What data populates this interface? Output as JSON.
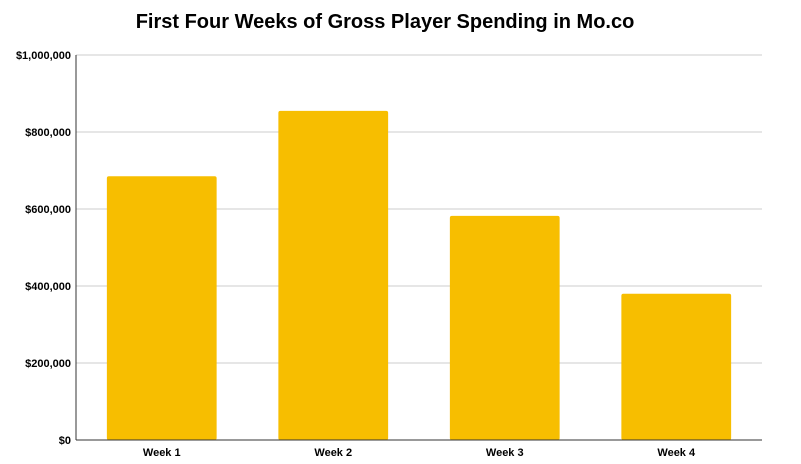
{
  "chart_data": {
    "type": "bar",
    "title": "First Four Weeks of Gross Player Spending in Mo.co",
    "xlabel": "",
    "ylabel": "",
    "categories": [
      "Week 1",
      "Week 2",
      "Week 3",
      "Week 4"
    ],
    "values": [
      685000,
      855000,
      582000,
      380000
    ],
    "ylim": [
      0,
      1000000
    ],
    "yticks": [
      0,
      200000,
      400000,
      600000,
      800000,
      1000000
    ],
    "ytick_labels": [
      "$0",
      "$200,000",
      "$400,000",
      "$600,000",
      "$800,000",
      "$1,000,000"
    ],
    "grid": true,
    "legend": "none",
    "colors": {
      "bar": "#F7BE00",
      "grid": "#cccccc",
      "axis": "#333333",
      "text": "#000000"
    }
  }
}
